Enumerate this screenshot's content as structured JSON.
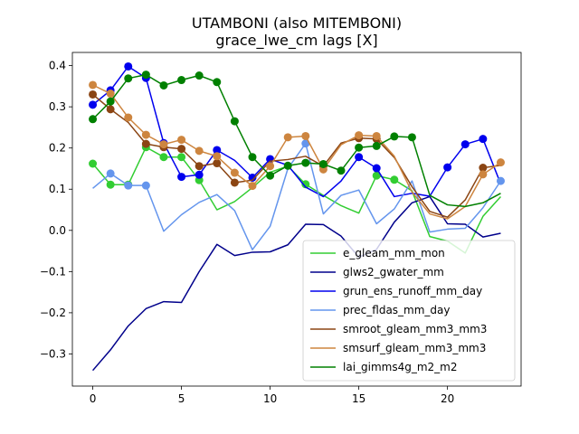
{
  "chart_data": {
    "type": "line",
    "title_line1": "UTAMBONI (also MITEMBONI)",
    "title_line2": "grace_lwe_cm lags [X]",
    "xlabel": "",
    "ylabel": "",
    "xlim": [
      -1.15,
      24.15
    ],
    "ylim": [
      -0.378,
      0.432
    ],
    "xticks": [
      0,
      5,
      10,
      15,
      20
    ],
    "yticks": [
      -0.3,
      -0.2,
      -0.1,
      0.0,
      0.1,
      0.2,
      0.3,
      0.4
    ],
    "ytick_labels": [
      "−0.3",
      "−0.2",
      "−0.1",
      "0.0",
      "0.1",
      "0.2",
      "0.3",
      "0.4"
    ],
    "grid": false,
    "legend_position": "lower right",
    "x": [
      0,
      1,
      2,
      3,
      4,
      5,
      6,
      7,
      8,
      9,
      10,
      11,
      12,
      13,
      14,
      15,
      16,
      17,
      18,
      19,
      20,
      21,
      22,
      23
    ],
    "series": [
      {
        "name": "e_gleam_mm_mon",
        "color": "#32cd32",
        "values": [
          0.162,
          0.111,
          0.111,
          0.202,
          0.178,
          0.178,
          0.122,
          0.05,
          0.07,
          0.104,
          0.141,
          0.156,
          0.112,
          0.085,
          0.06,
          0.042,
          0.133,
          0.123,
          0.096,
          -0.015,
          -0.026,
          -0.055,
          0.034,
          0.082
        ],
        "markers": [
          0,
          1,
          2,
          3,
          4,
          5,
          6,
          12,
          16,
          17
        ]
      },
      {
        "name": "glws2_gwater_mm",
        "color": "#00008b",
        "values": [
          -0.34,
          -0.29,
          -0.232,
          -0.19,
          -0.173,
          -0.175,
          -0.1,
          -0.034,
          -0.061,
          -0.053,
          -0.052,
          -0.035,
          0.015,
          0.014,
          -0.014,
          -0.065,
          -0.046,
          0.02,
          0.067,
          0.082,
          0.016,
          0.015,
          -0.016,
          -0.007
        ],
        "markers": []
      },
      {
        "name": "grun_ens_runoff_mm_day",
        "color": "#0000ee",
        "values": [
          0.305,
          0.34,
          0.398,
          0.37,
          0.212,
          0.13,
          0.135,
          0.195,
          0.17,
          0.128,
          0.173,
          0.158,
          0.105,
          0.082,
          0.12,
          0.178,
          0.151,
          0.082,
          0.09,
          0.083,
          0.153,
          0.209,
          0.222,
          0.113
        ],
        "markers": [
          0,
          1,
          2,
          3,
          4,
          5,
          6,
          7,
          9,
          10,
          15,
          16,
          20,
          21,
          22
        ]
      },
      {
        "name": "prec_fldas_mm_day",
        "color": "#6495ed",
        "values": [
          0.102,
          0.138,
          0.109,
          0.109,
          -0.002,
          0.038,
          0.068,
          0.087,
          0.048,
          -0.047,
          0.01,
          0.15,
          0.211,
          0.04,
          0.085,
          0.098,
          0.016,
          0.052,
          0.12,
          -0.004,
          0.003,
          0.005,
          0.055,
          0.12
        ],
        "markers": [
          1,
          2,
          3,
          12,
          23
        ]
      },
      {
        "name": "smroot_gleam_mm3_mm3",
        "color": "#8b4513",
        "values": [
          0.33,
          0.294,
          0.262,
          0.21,
          0.202,
          0.198,
          0.156,
          0.163,
          0.116,
          0.122,
          0.168,
          0.172,
          0.18,
          0.156,
          0.212,
          0.224,
          0.222,
          0.177,
          0.106,
          0.046,
          0.032,
          0.074,
          0.152,
          0.158
        ],
        "markers": [
          0,
          1,
          3,
          4,
          5,
          6,
          7,
          8,
          13,
          15,
          16,
          22
        ]
      },
      {
        "name": "smsurf_gleam_mm3_mm3",
        "color": "#cd853f",
        "values": [
          0.353,
          0.332,
          0.274,
          0.232,
          0.209,
          0.22,
          0.193,
          0.18,
          0.14,
          0.108,
          0.156,
          0.226,
          0.229,
          0.148,
          0.208,
          0.231,
          0.229,
          0.18,
          0.093,
          0.04,
          0.028,
          0.058,
          0.136,
          0.165
        ],
        "markers": [
          0,
          1,
          2,
          3,
          4,
          5,
          6,
          7,
          8,
          9,
          10,
          11,
          12,
          13,
          15,
          16,
          22,
          23
        ]
      },
      {
        "name": "lai_gimms4g_m2_m2",
        "color": "#008000",
        "values": [
          0.27,
          0.313,
          0.369,
          0.378,
          0.352,
          0.365,
          0.376,
          0.36,
          0.265,
          0.178,
          0.133,
          0.157,
          0.164,
          0.161,
          0.145,
          0.201,
          0.205,
          0.228,
          0.226,
          0.085,
          0.062,
          0.058,
          0.067,
          0.09
        ],
        "markers": [
          0,
          1,
          2,
          3,
          4,
          5,
          6,
          7,
          8,
          9,
          10,
          11,
          12,
          13,
          14,
          15,
          16,
          17,
          18
        ]
      }
    ]
  }
}
